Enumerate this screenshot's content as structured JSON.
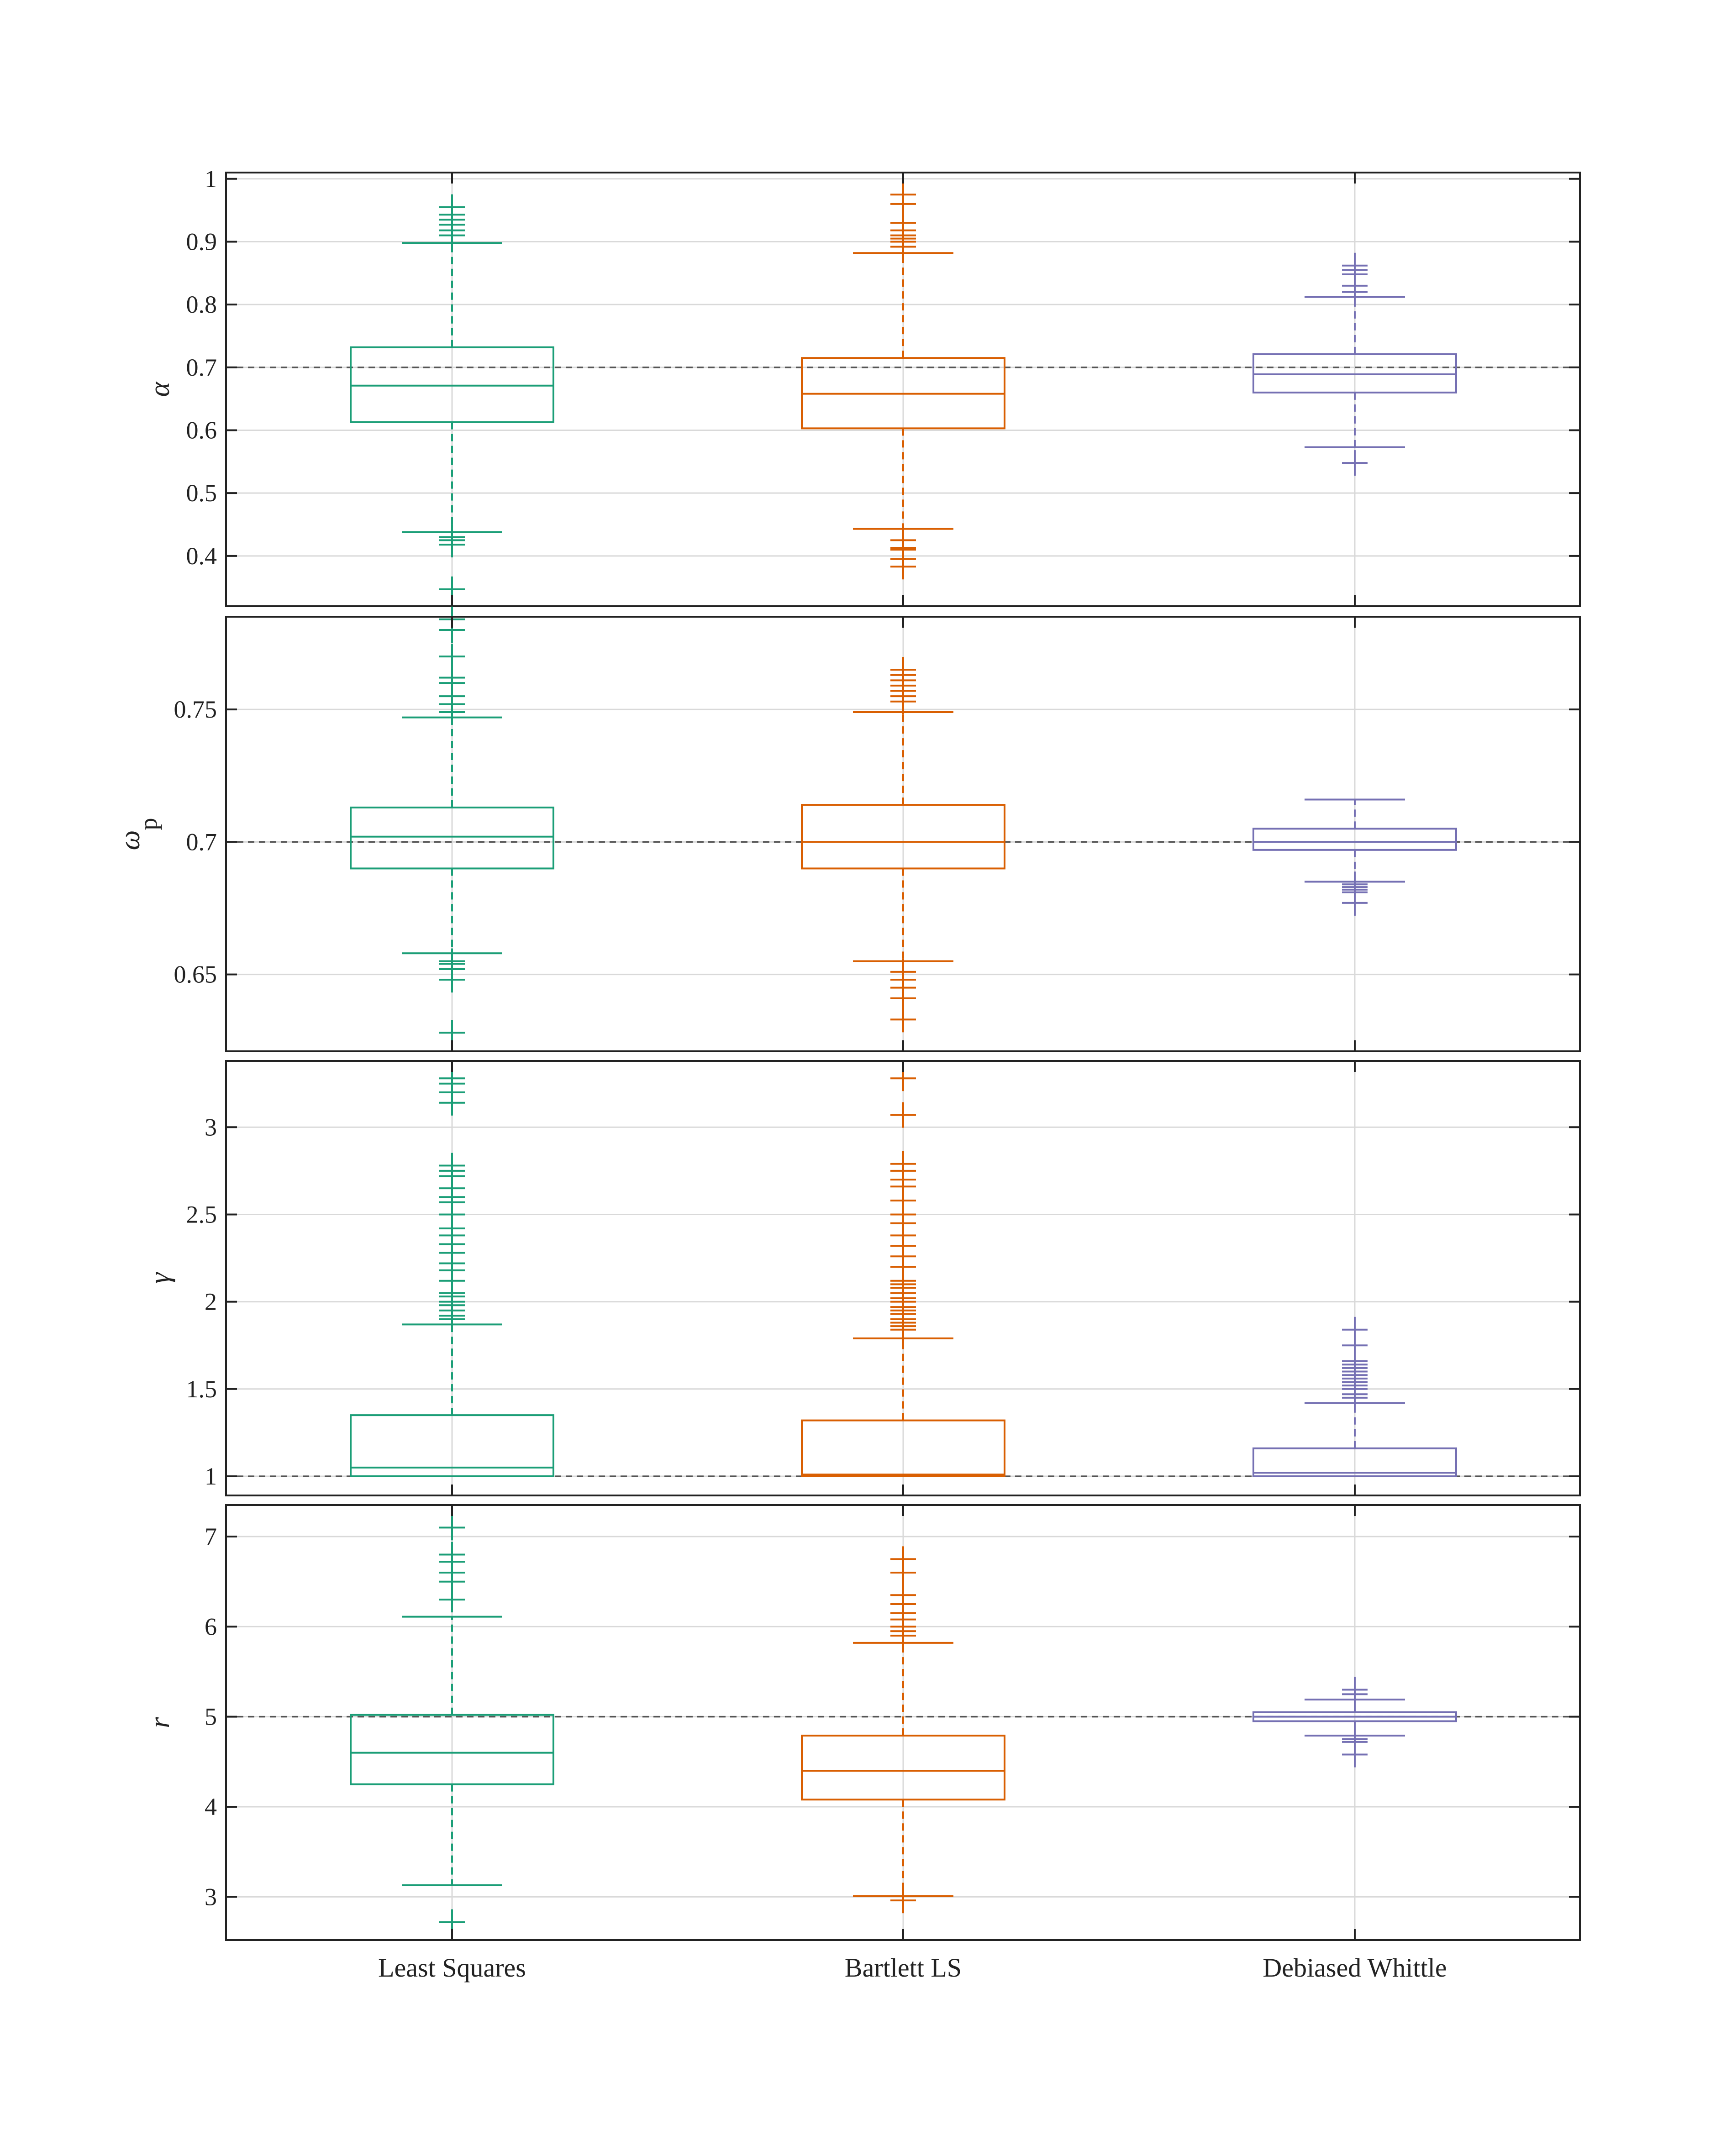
{
  "colors": {
    "least_squares": "#1b9e77",
    "bartlett_ls": "#d95f02",
    "debiased_whittle": "#7570b3",
    "reference_line": "#555555",
    "grid": "#d9d9d9",
    "axes": "#222222"
  },
  "chart_data": [
    {
      "type": "box",
      "panel": "alpha",
      "ylabel": "α",
      "ylabel_sub": "",
      "ylim": [
        0.32,
        1.01
      ],
      "yticks": [
        0.4,
        0.5,
        0.6,
        0.7,
        0.8,
        0.9,
        1
      ],
      "ytick_labels": [
        "0.4",
        "0.5",
        "0.6",
        "0.7",
        "0.8",
        "0.9",
        "1"
      ],
      "true_value": 0.7,
      "categories": [
        "Least Squares",
        "Bartlett LS",
        "Debiased Whittle"
      ],
      "series": [
        {
          "name": "Least Squares",
          "whisker_low": 0.438,
          "q1": 0.613,
          "median": 0.671,
          "q3": 0.732,
          "whisker_high": 0.898,
          "outliers": [
            0.347,
            0.418,
            0.425,
            0.43,
            0.91,
            0.918,
            0.927,
            0.935,
            0.943,
            0.955
          ]
        },
        {
          "name": "Bartlett LS",
          "whisker_low": 0.443,
          "q1": 0.603,
          "median": 0.658,
          "q3": 0.715,
          "whisker_high": 0.882,
          "outliers": [
            0.383,
            0.395,
            0.41,
            0.413,
            0.425,
            0.892,
            0.9,
            0.905,
            0.91,
            0.918,
            0.93,
            0.96,
            0.975
          ]
        },
        {
          "name": "Debiased Whittle",
          "whisker_low": 0.573,
          "q1": 0.66,
          "median": 0.689,
          "q3": 0.721,
          "whisker_high": 0.812,
          "outliers": [
            0.548,
            0.82,
            0.83,
            0.848,
            0.855,
            0.862
          ]
        }
      ]
    },
    {
      "type": "box",
      "panel": "omega_p",
      "ylabel": "ω",
      "ylabel_sub": "p",
      "ylim": [
        0.621,
        0.785
      ],
      "yticks": [
        0.65,
        0.7,
        0.75
      ],
      "ytick_labels": [
        "0.65",
        "0.7",
        "0.75"
      ],
      "true_value": 0.7,
      "categories": [
        "Least Squares",
        "Bartlett LS",
        "Debiased Whittle"
      ],
      "series": [
        {
          "name": "Least Squares",
          "whisker_low": 0.658,
          "q1": 0.69,
          "median": 0.702,
          "q3": 0.713,
          "whisker_high": 0.747,
          "outliers": [
            0.628,
            0.648,
            0.652,
            0.654,
            0.655,
            0.749,
            0.752,
            0.755,
            0.76,
            0.762,
            0.77,
            0.78,
            0.784
          ]
        },
        {
          "name": "Bartlett LS",
          "whisker_low": 0.655,
          "q1": 0.69,
          "median": 0.7,
          "q3": 0.714,
          "whisker_high": 0.749,
          "outliers": [
            0.633,
            0.641,
            0.645,
            0.648,
            0.651,
            0.753,
            0.755,
            0.757,
            0.759,
            0.761,
            0.763,
            0.765
          ]
        },
        {
          "name": "Debiased Whittle",
          "whisker_low": 0.685,
          "q1": 0.697,
          "median": 0.7,
          "q3": 0.705,
          "whisker_high": 0.716,
          "outliers": [
            0.677,
            0.681,
            0.682,
            0.683,
            0.684
          ]
        }
      ]
    },
    {
      "type": "box",
      "panel": "gamma",
      "ylabel": "γ",
      "ylabel_sub": "",
      "ylim": [
        0.89,
        3.38
      ],
      "yticks": [
        1,
        1.5,
        2,
        2.5,
        3
      ],
      "ytick_labels": [
        "1",
        "1.5",
        "2",
        "2.5",
        "3"
      ],
      "true_value": 1,
      "categories": [
        "Least Squares",
        "Bartlett LS",
        "Debiased Whittle"
      ],
      "series": [
        {
          "name": "Least Squares",
          "whisker_low": 1,
          "q1": 1.0,
          "median": 1.05,
          "q3": 1.35,
          "whisker_high": 1.87,
          "outliers": [
            1.9,
            1.92,
            1.95,
            1.98,
            2.0,
            2.03,
            2.05,
            2.12,
            2.18,
            2.22,
            2.28,
            2.33,
            2.38,
            2.42,
            2.5,
            2.57,
            2.6,
            2.65,
            2.72,
            2.75,
            2.78,
            3.14,
            3.2,
            3.25,
            3.28
          ]
        },
        {
          "name": "Bartlett LS",
          "whisker_low": 1,
          "q1": 1.0,
          "median": 1.01,
          "q3": 1.32,
          "whisker_high": 1.79,
          "outliers": [
            1.84,
            1.86,
            1.88,
            1.9,
            1.93,
            1.95,
            1.97,
            2.0,
            2.02,
            2.05,
            2.08,
            2.1,
            2.12,
            2.2,
            2.26,
            2.32,
            2.38,
            2.45,
            2.5,
            2.58,
            2.66,
            2.7,
            2.75,
            2.79,
            3.07,
            3.28
          ]
        },
        {
          "name": "Debiased Whittle",
          "whisker_low": 1,
          "q1": 1.0,
          "median": 1.02,
          "q3": 1.16,
          "whisker_high": 1.42,
          "outliers": [
            1.45,
            1.47,
            1.5,
            1.52,
            1.54,
            1.56,
            1.58,
            1.6,
            1.62,
            1.64,
            1.66,
            1.75,
            1.84
          ]
        }
      ]
    },
    {
      "type": "box",
      "panel": "r",
      "ylabel": "r",
      "ylabel_sub": "",
      "ylim": [
        2.52,
        7.35
      ],
      "yticks": [
        3,
        4,
        5,
        6,
        7
      ],
      "ytick_labels": [
        "3",
        "4",
        "5",
        "6",
        "7"
      ],
      "true_value": 5,
      "categories": [
        "Least Squares",
        "Bartlett LS",
        "Debiased Whittle"
      ],
      "series": [
        {
          "name": "Least Squares",
          "whisker_low": 3.13,
          "q1": 4.25,
          "median": 4.6,
          "q3": 5.02,
          "whisker_high": 6.11,
          "outliers": [
            2.72,
            6.3,
            6.5,
            6.6,
            6.72,
            6.8,
            7.1
          ]
        },
        {
          "name": "Bartlett LS",
          "whisker_low": 3.01,
          "q1": 4.08,
          "median": 4.4,
          "q3": 4.79,
          "whisker_high": 5.82,
          "outliers": [
            2.96,
            5.9,
            5.95,
            6.0,
            6.08,
            6.15,
            6.25,
            6.35,
            6.6,
            6.75
          ]
        },
        {
          "name": "Debiased Whittle",
          "whisker_low": 4.79,
          "q1": 4.95,
          "median": 5.0,
          "q3": 5.05,
          "whisker_high": 5.19,
          "outliers": [
            4.58,
            4.72,
            4.75,
            5.25,
            5.3
          ]
        }
      ]
    }
  ]
}
